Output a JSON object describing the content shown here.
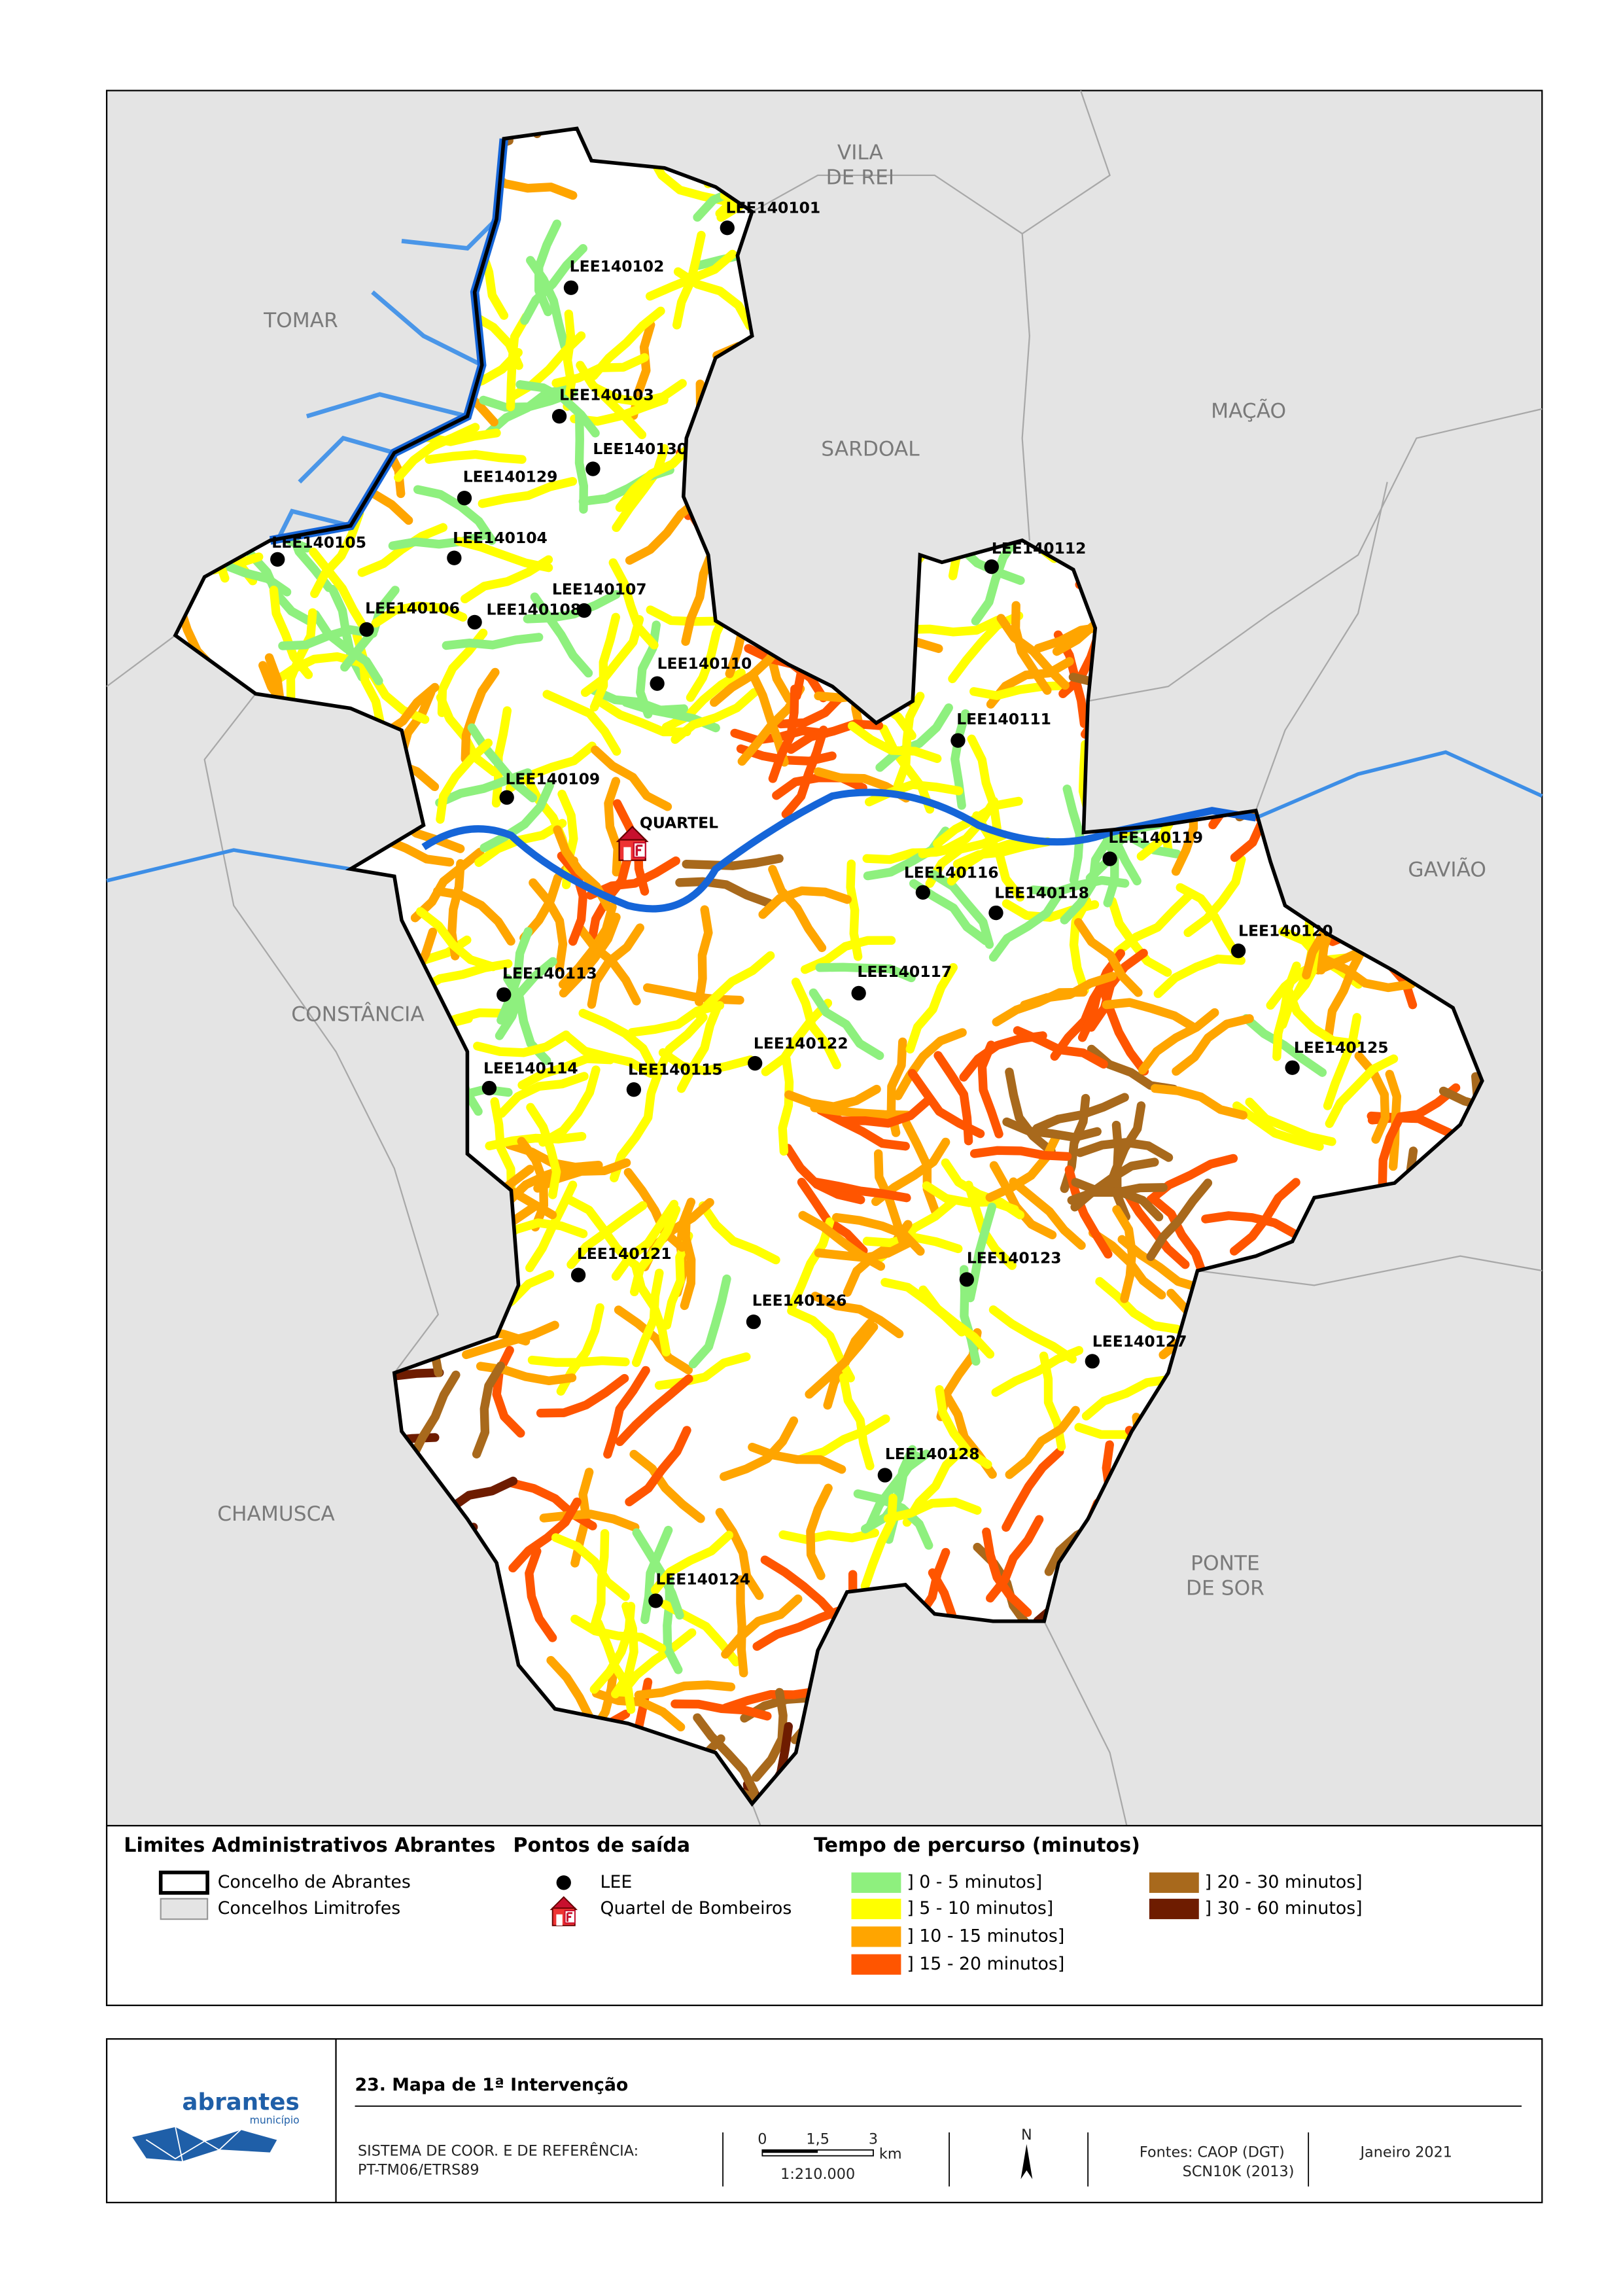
{
  "neighbors": [
    [
      "VILA",
      "DE REI"
    ],
    [
      "TOMAR"
    ],
    [
      "MAÇÃO"
    ],
    [
      "SARDOAL"
    ],
    [
      "GAVIÃO"
    ],
    [
      "CONSTÂNCIA"
    ],
    [
      "CHAMUSCA"
    ],
    [
      "PONTE",
      "DE SOR"
    ]
  ],
  "points": [
    "LEE140101",
    "LEE140102",
    "LEE140103",
    "LEE140130",
    "LEE140129",
    "LEE140105",
    "LEE140104",
    "LEE140107",
    "LEE140108",
    "LEE140106",
    "LEE140112",
    "LEE140110",
    "LEE140111",
    "LEE140109",
    "LEE140119",
    "LEE140116",
    "LEE140118",
    "LEE140120",
    "LEE140113",
    "LEE140117",
    "LEE140125",
    "LEE140122",
    "LEE140114",
    "LEE140115",
    "LEE140121",
    "LEE140123",
    "LEE140126",
    "LEE140127",
    "LEE140128",
    "LEE140124"
  ],
  "fire_station": "QUARTEL",
  "legend": {
    "admin": {
      "title": "Limites Administrativos Abrantes",
      "items": [
        "Concelho de Abrantes",
        "Concelhos Limitrofes"
      ]
    },
    "exit_points": {
      "title": "Pontos de saída",
      "items": [
        "LEE",
        "Quartel de Bombeiros"
      ]
    },
    "travel_time": {
      "title": "Tempo de percurso (minutos)",
      "items": [
        {
          "label": "] 0 - 5 minutos]",
          "color": "#8ef07e"
        },
        {
          "label": "] 5 - 10 minutos]",
          "color": "#ffff00"
        },
        {
          "label": "] 10 - 15 minutos]",
          "color": "#ffa500"
        },
        {
          "label": "] 15 - 20 minutos]",
          "color": "#ff5500"
        },
        {
          "label": "] 20 - 30 minutos]",
          "color": "#a8691c"
        },
        {
          "label": "] 30 - 60 minutos]",
          "color": "#6e1c00"
        }
      ]
    }
  },
  "footer": {
    "logo": {
      "name": "abrantes",
      "sub": "município"
    },
    "title": "23. Mapa de 1ª Intervenção",
    "crs": [
      "SISTEMA DE COOR. E DE REFERÊNCIA:",
      "PT-TM06/ETRS89"
    ],
    "scale_bar": {
      "ticks": [
        "0",
        "1,5",
        "3"
      ],
      "unit": "km",
      "ratio": "1:210.000"
    },
    "north": "N",
    "sources": [
      "Fontes: CAOP (DGT)",
      "SCN10K (2013)"
    ],
    "date": "Janeiro 2021"
  }
}
